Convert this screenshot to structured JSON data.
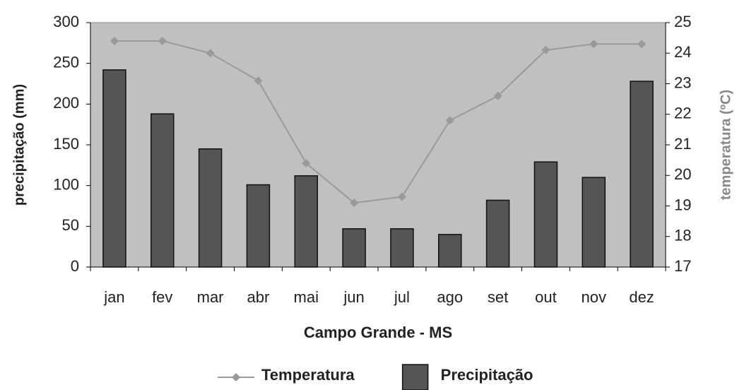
{
  "chart_data": {
    "type": "bar_line",
    "xlabel": "Campo Grande - MS",
    "ylabel": "precipitação (mm)",
    "y2label": "temperatura (ºC)",
    "categories": [
      "jan",
      "fev",
      "mar",
      "abr",
      "mai",
      "jun",
      "jul",
      "ago",
      "set",
      "out",
      "nov",
      "dez"
    ],
    "series": [
      {
        "name": "Temperatura",
        "type": "line",
        "axis": "y2",
        "color": "#9a9a9a",
        "values": [
          24.4,
          24.4,
          24.0,
          23.1,
          20.4,
          19.1,
          19.3,
          21.8,
          22.6,
          24.1,
          24.3,
          24.3
        ]
      },
      {
        "name": "Precipitação",
        "type": "bar",
        "color": "#555555",
        "values": [
          242,
          188,
          145,
          101,
          112,
          47,
          47,
          40,
          82,
          129,
          110,
          228
        ]
      }
    ],
    "ylim": [
      0,
      300
    ],
    "yticks": [
      0,
      50,
      100,
      150,
      200,
      250,
      300
    ],
    "y2lim": [
      17,
      25
    ],
    "y2ticks": [
      17,
      18,
      19,
      20,
      21,
      22,
      23,
      24,
      25
    ],
    "background": "#c0c0c0",
    "legend": "bottom"
  }
}
